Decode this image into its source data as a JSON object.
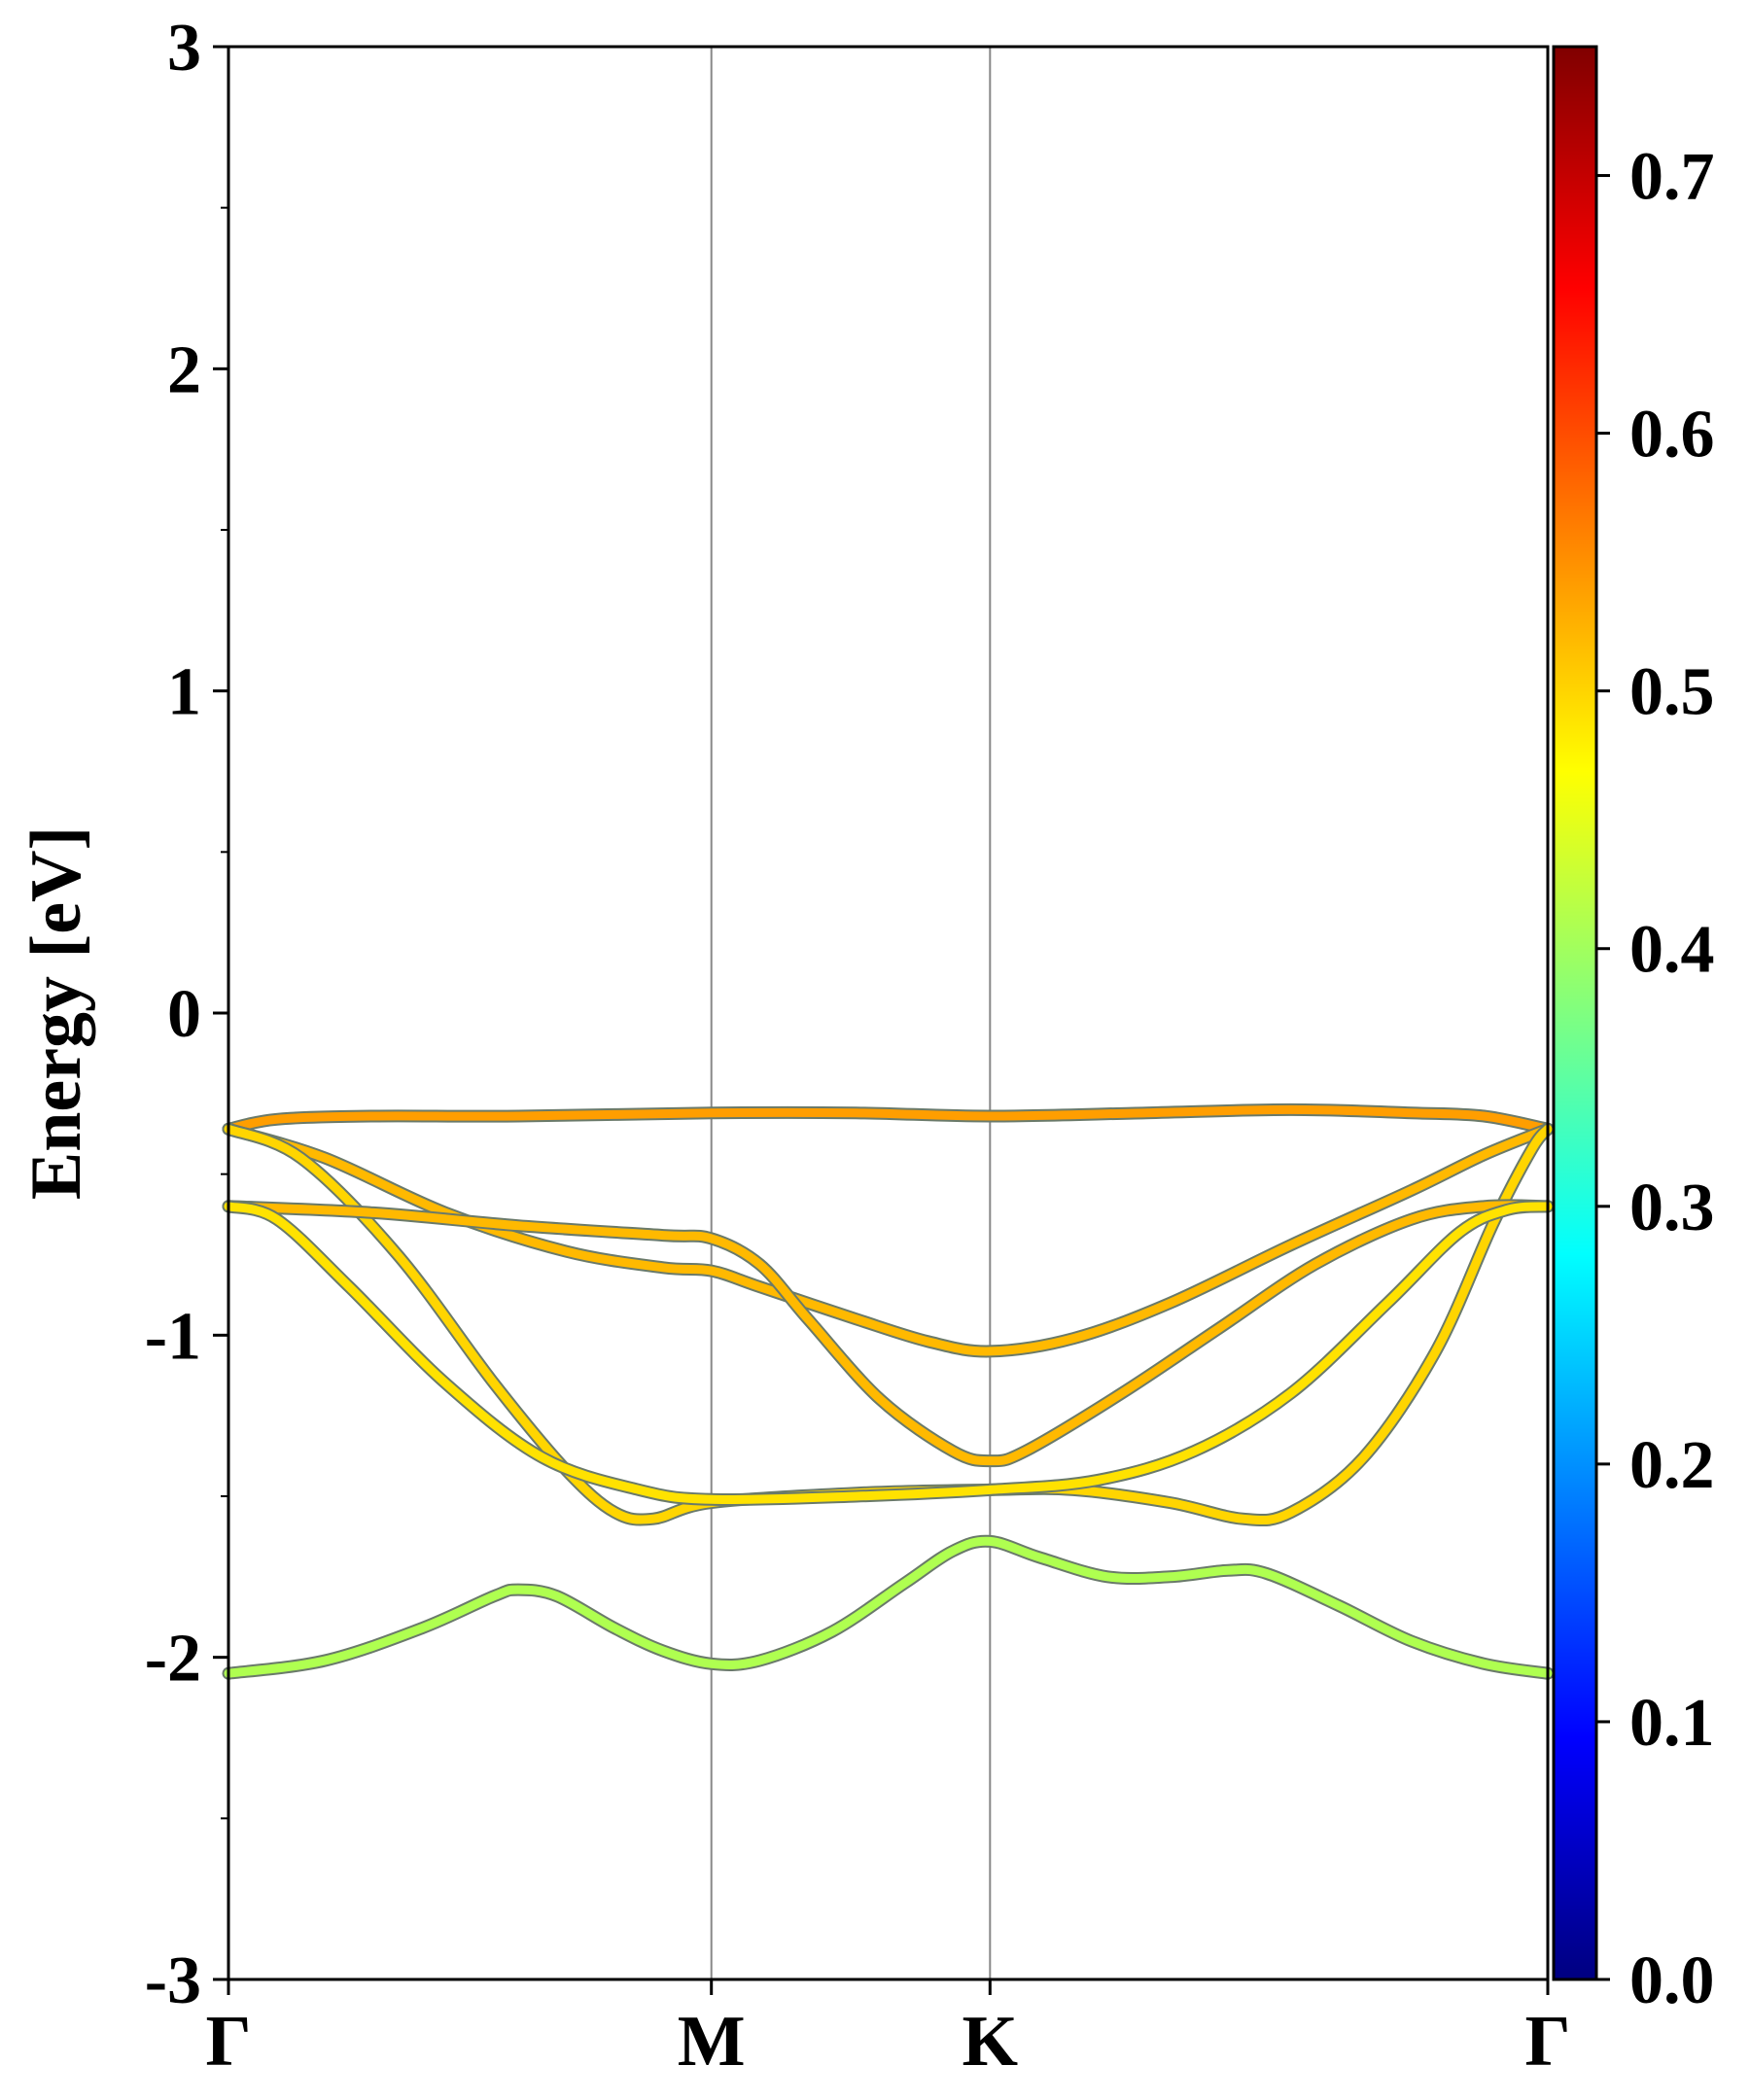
{
  "chart_data": {
    "type": "line",
    "title": "",
    "ylabel": "Energy [eV]",
    "xlabel": "",
    "ylim": [
      -3,
      3
    ],
    "y_major_ticks": [
      -3,
      -2,
      -1,
      0,
      1,
      2,
      3
    ],
    "y_minor_ticks": [
      -2.5,
      -1.5,
      -0.5,
      0.5,
      1.5,
      2.5
    ],
    "y_tick_labels": [
      "-3",
      "-2",
      "-1",
      "0",
      "1",
      "2",
      "3"
    ],
    "k_path": {
      "labels": [
        "Γ",
        "M",
        "K",
        "Γ"
      ],
      "positions": [
        0,
        1,
        1.577,
        2.732
      ]
    },
    "grid": false,
    "colorbar": {
      "colormap": "jet",
      "range": [
        0.0,
        0.75
      ],
      "ticks": [
        0.0,
        0.1,
        0.2,
        0.3,
        0.4,
        0.5,
        0.6,
        0.7
      ],
      "tick_labels": [
        "0.0",
        "0.1",
        "0.2",
        "0.3",
        "0.4",
        "0.5",
        "0.6",
        "0.7"
      ]
    },
    "series": [
      {
        "weight": 0.54,
        "points": [
          [
            0,
            -0.36
          ],
          [
            0.1,
            -0.33
          ],
          [
            0.3,
            -0.32
          ],
          [
            0.6,
            -0.32
          ],
          [
            1.0,
            -0.31
          ],
          [
            1.3,
            -0.31
          ],
          [
            1.577,
            -0.32
          ],
          [
            1.9,
            -0.31
          ],
          [
            2.2,
            -0.3
          ],
          [
            2.45,
            -0.31
          ],
          [
            2.6,
            -0.32
          ],
          [
            2.732,
            -0.36
          ]
        ]
      },
      {
        "weight": 0.52,
        "points": [
          [
            0,
            -0.36
          ],
          [
            0.2,
            -0.45
          ],
          [
            0.45,
            -0.62
          ],
          [
            0.7,
            -0.74
          ],
          [
            0.9,
            -0.79
          ],
          [
            1.0,
            -0.8
          ],
          [
            1.1,
            -0.85
          ],
          [
            1.3,
            -0.95
          ],
          [
            1.45,
            -1.02
          ],
          [
            1.577,
            -1.05
          ],
          [
            1.75,
            -1.01
          ],
          [
            1.95,
            -0.9
          ],
          [
            2.2,
            -0.72
          ],
          [
            2.45,
            -0.55
          ],
          [
            2.6,
            -0.44
          ],
          [
            2.732,
            -0.36
          ]
        ]
      },
      {
        "weight": 0.5,
        "points": [
          [
            0,
            -0.36
          ],
          [
            0.15,
            -0.45
          ],
          [
            0.35,
            -0.75
          ],
          [
            0.55,
            -1.15
          ],
          [
            0.7,
            -1.42
          ],
          [
            0.8,
            -1.55
          ],
          [
            0.88,
            -1.57
          ],
          [
            1.0,
            -1.52
          ],
          [
            1.3,
            -1.49
          ],
          [
            1.577,
            -1.48
          ],
          [
            1.75,
            -1.48
          ],
          [
            1.95,
            -1.52
          ],
          [
            2.1,
            -1.57
          ],
          [
            2.2,
            -1.55
          ],
          [
            2.35,
            -1.38
          ],
          [
            2.5,
            -1.05
          ],
          [
            2.62,
            -0.65
          ],
          [
            2.7,
            -0.42
          ],
          [
            2.732,
            -0.36
          ]
        ]
      },
      {
        "weight": 0.52,
        "points": [
          [
            0,
            -0.6
          ],
          [
            0.3,
            -0.62
          ],
          [
            0.6,
            -0.66
          ],
          [
            0.9,
            -0.69
          ],
          [
            1.0,
            -0.7
          ],
          [
            1.1,
            -0.78
          ],
          [
            1.2,
            -0.95
          ],
          [
            1.35,
            -1.2
          ],
          [
            1.5,
            -1.36
          ],
          [
            1.577,
            -1.39
          ],
          [
            1.65,
            -1.36
          ],
          [
            1.85,
            -1.18
          ],
          [
            2.05,
            -0.98
          ],
          [
            2.25,
            -0.78
          ],
          [
            2.45,
            -0.64
          ],
          [
            2.6,
            -0.6
          ],
          [
            2.732,
            -0.6
          ]
        ]
      },
      {
        "weight": 0.49,
        "points": [
          [
            0,
            -0.6
          ],
          [
            0.1,
            -0.64
          ],
          [
            0.25,
            -0.85
          ],
          [
            0.45,
            -1.15
          ],
          [
            0.65,
            -1.38
          ],
          [
            0.85,
            -1.48
          ],
          [
            1.0,
            -1.51
          ],
          [
            1.3,
            -1.5
          ],
          [
            1.577,
            -1.48
          ],
          [
            1.8,
            -1.45
          ],
          [
            2.0,
            -1.36
          ],
          [
            2.2,
            -1.18
          ],
          [
            2.4,
            -0.9
          ],
          [
            2.55,
            -0.68
          ],
          [
            2.65,
            -0.61
          ],
          [
            2.732,
            -0.6
          ]
        ]
      },
      {
        "weight": 0.41,
        "points": [
          [
            0,
            -2.05
          ],
          [
            0.2,
            -2.01
          ],
          [
            0.4,
            -1.91
          ],
          [
            0.55,
            -1.81
          ],
          [
            0.6,
            -1.79
          ],
          [
            0.68,
            -1.81
          ],
          [
            0.8,
            -1.91
          ],
          [
            0.9,
            -1.98
          ],
          [
            1.0,
            -2.02
          ],
          [
            1.1,
            -2.01
          ],
          [
            1.25,
            -1.92
          ],
          [
            1.4,
            -1.77
          ],
          [
            1.5,
            -1.67
          ],
          [
            1.577,
            -1.64
          ],
          [
            1.68,
            -1.69
          ],
          [
            1.82,
            -1.75
          ],
          [
            1.95,
            -1.75
          ],
          [
            2.07,
            -1.73
          ],
          [
            2.15,
            -1.74
          ],
          [
            2.3,
            -1.84
          ],
          [
            2.45,
            -1.95
          ],
          [
            2.6,
            -2.02
          ],
          [
            2.732,
            -2.05
          ]
        ]
      }
    ]
  }
}
